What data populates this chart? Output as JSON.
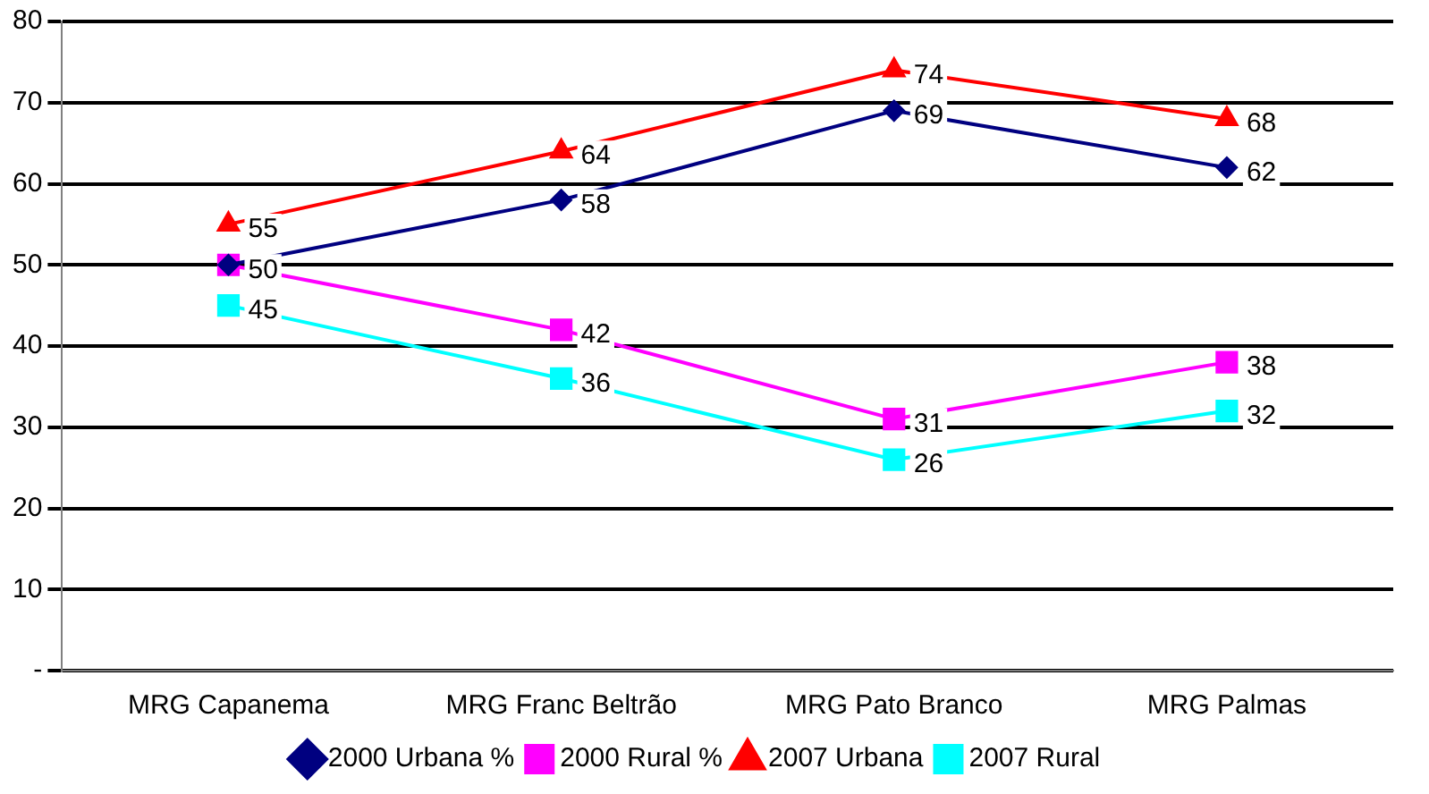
{
  "chart_data": {
    "type": "line",
    "categories": [
      "MRG Capanema",
      "MRG Franc Beltrão",
      "MRG Pato Branco",
      "MRG Palmas"
    ],
    "series": [
      {
        "name": "2000 Urbana %",
        "color": "#000080",
        "marker": "diamond",
        "values": [
          50,
          58,
          69,
          62
        ],
        "value_labels": [
          "50",
          "58",
          "69",
          "62"
        ]
      },
      {
        "name": "2000 Rural %",
        "color": "#ff00ff",
        "marker": "square",
        "values": [
          50,
          42,
          31,
          38
        ],
        "value_labels": [
          null,
          "42",
          "31",
          "38"
        ]
      },
      {
        "name": "2007 Urbana",
        "color": "#ff0000",
        "marker": "triangle",
        "values": [
          55,
          64,
          74,
          68
        ],
        "value_labels": [
          "55",
          "64",
          "74",
          "68"
        ]
      },
      {
        "name": "2007 Rural",
        "color": "#00ffff",
        "marker": "square",
        "values": [
          45,
          36,
          26,
          32
        ],
        "value_labels": [
          "45",
          "36",
          "26",
          "32"
        ]
      }
    ],
    "ylim": [
      0,
      80
    ],
    "yticks": [
      {
        "value": 0,
        "label": "-"
      },
      10,
      20,
      30,
      40,
      50,
      60,
      70,
      80
    ],
    "grid": "y",
    "legend": "bottom"
  }
}
